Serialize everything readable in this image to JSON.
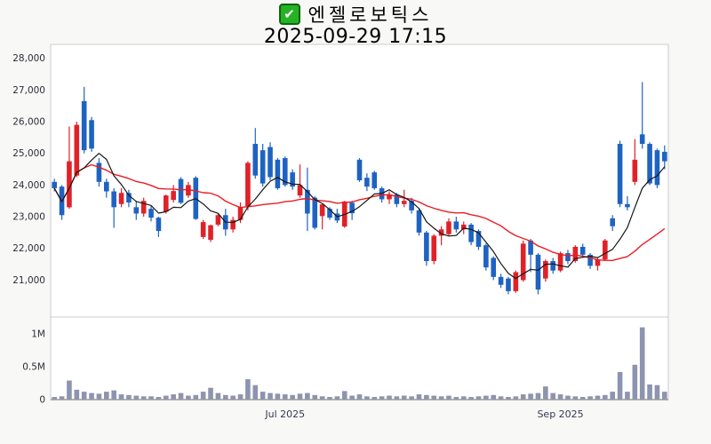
{
  "header": {
    "checkbox_icon": "green-checkbox",
    "stock_name": "엔젤로보틱스",
    "timestamp": "2025-09-29 17:15"
  },
  "chart_data": {
    "type": "candlestick",
    "title": "엔젤로보틱스",
    "datetime_label": "2025-09-29 17:15",
    "legend_position": "none",
    "grid": false,
    "price_axis": {
      "tick_labels": [
        "28,000",
        "27,000",
        "26,000",
        "25,000",
        "24,000",
        "23,000",
        "22,000",
        "21,000"
      ],
      "tick_values": [
        28000,
        27000,
        26000,
        25000,
        24000,
        23000,
        22000,
        21000
      ],
      "range_shown": [
        21000,
        28000
      ]
    },
    "volume_axis": {
      "tick_labels": [
        "1M",
        "0.5M",
        "0"
      ],
      "tick_values_millions": [
        1,
        0.5,
        0
      ]
    },
    "x_axis": {
      "ticks": [
        {
          "label": "Jul 2025",
          "index": 31
        },
        {
          "label": "Sep 2025",
          "index": 68
        }
      ]
    },
    "overlays": [
      {
        "name": "short-moving-average",
        "period": 5,
        "color": "#161616"
      },
      {
        "name": "long-moving-average",
        "period": 20,
        "color": "#ea1c24"
      }
    ],
    "colors": {
      "up": "#e02128",
      "down": "#1e63c2",
      "volume_bar": "#8d94b0",
      "plot_border": "#cccccc",
      "baseline": "#999999",
      "tick_text": "#2d2d3a",
      "x_tick_text": "#343a50",
      "background": "#f8f8f6",
      "plot_background": "#ffffff"
    },
    "candles_ohlc": [
      [
        24100,
        24200,
        23800,
        23900
      ],
      [
        23950,
        24000,
        22900,
        23050
      ],
      [
        23300,
        25850,
        23250,
        24750
      ],
      [
        24300,
        26000,
        24250,
        25900
      ],
      [
        26650,
        27100,
        25000,
        25100
      ],
      [
        26050,
        26150,
        25050,
        25150
      ],
      [
        24700,
        24850,
        23950,
        24100
      ],
      [
        24100,
        24200,
        23600,
        23800
      ],
      [
        23800,
        23900,
        22650,
        23300
      ],
      [
        23400,
        23900,
        23300,
        23750
      ],
      [
        23750,
        23850,
        23300,
        23450
      ],
      [
        23300,
        23500,
        22900,
        23100
      ],
      [
        23100,
        23600,
        23000,
        23500
      ],
      [
        23250,
        23350,
        22850,
        22970
      ],
      [
        22970,
        23000,
        22360,
        22550
      ],
      [
        23160,
        23700,
        23100,
        23670
      ],
      [
        23530,
        24000,
        23450,
        23810
      ],
      [
        24190,
        24250,
        23400,
        23440
      ],
      [
        23670,
        24100,
        23600,
        24000
      ],
      [
        24230,
        24280,
        22900,
        22930
      ],
      [
        22360,
        22900,
        22300,
        22830
      ],
      [
        22270,
        22750,
        22200,
        22730
      ],
      [
        22750,
        23100,
        22700,
        23050
      ],
      [
        23050,
        23250,
        22400,
        22600
      ],
      [
        22600,
        23000,
        22500,
        22900
      ],
      [
        22900,
        23450,
        22800,
        23300
      ],
      [
        23300,
        24750,
        23200,
        24700
      ],
      [
        25300,
        25800,
        24200,
        24300
      ],
      [
        25100,
        25300,
        23950,
        24050
      ],
      [
        25200,
        25350,
        24150,
        24250
      ],
      [
        24800,
        24850,
        23850,
        23900
      ],
      [
        24850,
        24900,
        23950,
        24000
      ],
      [
        24400,
        24500,
        23850,
        23950
      ],
      [
        23670,
        24650,
        23600,
        24000
      ],
      [
        23850,
        24550,
        22550,
        23100
      ],
      [
        23600,
        23650,
        22600,
        22650
      ],
      [
        23020,
        23400,
        22600,
        23390
      ],
      [
        23250,
        23300,
        22900,
        22970
      ],
      [
        23100,
        23250,
        22800,
        22880
      ],
      [
        22690,
        23500,
        22650,
        23480
      ],
      [
        23440,
        23500,
        22900,
        23110
      ],
      [
        24800,
        24850,
        24100,
        24150
      ],
      [
        24230,
        24370,
        23810,
        23950
      ],
      [
        24400,
        24450,
        23850,
        23900
      ],
      [
        23900,
        23950,
        23450,
        23550
      ],
      [
        23550,
        23800,
        23400,
        23700
      ],
      [
        23700,
        23750,
        23300,
        23400
      ],
      [
        23400,
        23850,
        23300,
        23500
      ],
      [
        23500,
        23600,
        23100,
        23200
      ],
      [
        23200,
        23250,
        22400,
        22500
      ],
      [
        22500,
        22550,
        21450,
        21600
      ],
      [
        21600,
        22450,
        21500,
        22400
      ],
      [
        22400,
        22700,
        22100,
        22600
      ],
      [
        22450,
        22950,
        22400,
        22850
      ],
      [
        22850,
        23000,
        22500,
        22600
      ],
      [
        22600,
        22850,
        22450,
        22750
      ],
      [
        22750,
        22800,
        22100,
        22200
      ],
      [
        22550,
        22600,
        21950,
        22050
      ],
      [
        22100,
        22150,
        21300,
        21400
      ],
      [
        21700,
        21750,
        21000,
        21100
      ],
      [
        21100,
        21200,
        20750,
        20850
      ],
      [
        21050,
        21100,
        20550,
        20650
      ],
      [
        20650,
        21300,
        20600,
        21250
      ],
      [
        21000,
        22250,
        20950,
        22150
      ],
      [
        22250,
        22300,
        21250,
        21800
      ],
      [
        21800,
        21850,
        20550,
        20700
      ],
      [
        21050,
        21650,
        20950,
        21600
      ],
      [
        21600,
        21700,
        21200,
        21300
      ],
      [
        21300,
        21900,
        21250,
        21850
      ],
      [
        21850,
        21950,
        21500,
        21600
      ],
      [
        21600,
        22100,
        21550,
        22050
      ],
      [
        22050,
        22150,
        21700,
        21800
      ],
      [
        21800,
        21850,
        21350,
        21450
      ],
      [
        21450,
        21700,
        21300,
        21650
      ],
      [
        21650,
        22300,
        21600,
        22250
      ],
      [
        22950,
        23050,
        22550,
        22700
      ],
      [
        25300,
        25400,
        23300,
        23400
      ],
      [
        23400,
        23650,
        23200,
        23300
      ],
      [
        24100,
        25450,
        24000,
        24800
      ],
      [
        25600,
        27250,
        25150,
        25300
      ],
      [
        25300,
        25350,
        24000,
        24050
      ],
      [
        25100,
        25150,
        23900,
        24000
      ],
      [
        25050,
        25250,
        24500,
        24750
      ]
    ],
    "volumes_millions": [
      0.04,
      0.05,
      0.29,
      0.15,
      0.12,
      0.1,
      0.09,
      0.12,
      0.14,
      0.08,
      0.07,
      0.06,
      0.05,
      0.05,
      0.04,
      0.06,
      0.08,
      0.1,
      0.06,
      0.07,
      0.12,
      0.18,
      0.1,
      0.07,
      0.06,
      0.08,
      0.31,
      0.22,
      0.12,
      0.1,
      0.09,
      0.08,
      0.07,
      0.09,
      0.1,
      0.07,
      0.05,
      0.04,
      0.05,
      0.13,
      0.06,
      0.08,
      0.05,
      0.04,
      0.05,
      0.06,
      0.05,
      0.06,
      0.05,
      0.08,
      0.07,
      0.06,
      0.05,
      0.06,
      0.04,
      0.05,
      0.04,
      0.05,
      0.06,
      0.07,
      0.05,
      0.04,
      0.05,
      0.08,
      0.09,
      0.1,
      0.2,
      0.1,
      0.08,
      0.06,
      0.05,
      0.04,
      0.05,
      0.06,
      0.07,
      0.12,
      0.42,
      0.12,
      0.53,
      1.1,
      0.23,
      0.22,
      0.12
    ]
  }
}
